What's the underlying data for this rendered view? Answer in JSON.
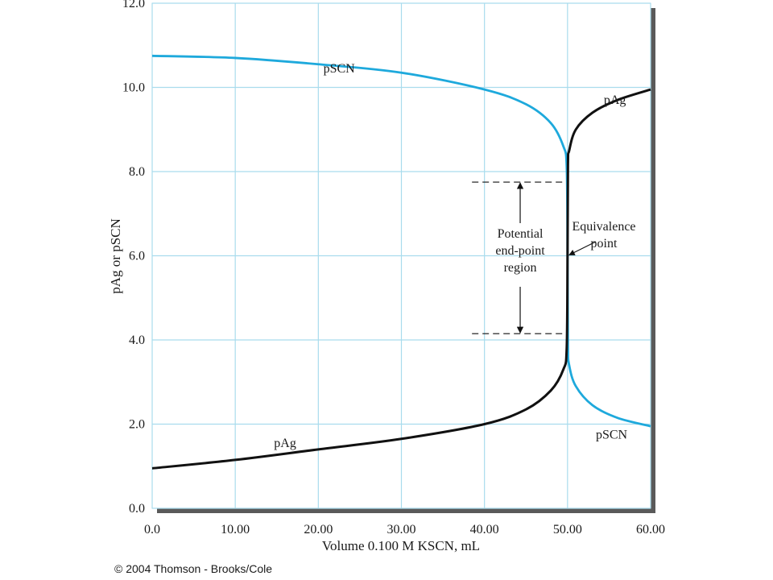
{
  "chart_data": {
    "type": "line",
    "title": "",
    "xlabel": "Volume 0.100 M KSCN, mL",
    "ylabel": "pAg or pSCN",
    "xlim": [
      0,
      60
    ],
    "ylim": [
      0,
      12
    ],
    "x_ticks": [
      "0.0",
      "10.00",
      "20.00",
      "30.00",
      "40.00",
      "50.00",
      "60.00"
    ],
    "y_ticks": [
      "0.0",
      "2.0",
      "4.0",
      "6.0",
      "8.0",
      "10.0",
      "12.0"
    ],
    "grid": true,
    "series": [
      {
        "name": "pSCN",
        "color": "#1ea9dc",
        "x": [
          0,
          10,
          20,
          30,
          40,
          45,
          48,
          49.5,
          49.9,
          50.0,
          50.05,
          50.2,
          51,
          53,
          56,
          60
        ],
        "y": [
          10.75,
          10.7,
          10.55,
          10.35,
          9.95,
          9.6,
          9.15,
          8.6,
          8.1,
          6.0,
          3.9,
          3.4,
          2.9,
          2.45,
          2.15,
          1.95
        ]
      },
      {
        "name": "pAg",
        "color": "#111111",
        "x": [
          0,
          10,
          20,
          30,
          40,
          45,
          48,
          49.5,
          49.9,
          50.0,
          50.05,
          50.2,
          51,
          53,
          56,
          60
        ],
        "y": [
          0.95,
          1.15,
          1.4,
          1.65,
          2.0,
          2.35,
          2.8,
          3.3,
          3.8,
          6.0,
          8.15,
          8.5,
          9.0,
          9.4,
          9.7,
          9.95
        ]
      }
    ],
    "labels": [
      {
        "text": "pSCN",
        "series": "pSCN",
        "x": 22.5,
        "y": 10.45
      },
      {
        "text": "pAg",
        "series": "pAg",
        "x": 55.7,
        "y": 9.7
      },
      {
        "text": "pAg",
        "series": "pAg",
        "x": 16,
        "y": 1.55
      },
      {
        "text": "pSCN",
        "series": "pSCN",
        "x": 55.3,
        "y": 1.75
      }
    ],
    "annotations": {
      "end_point_region": {
        "upper": 7.75,
        "lower": 4.15,
        "x_from": 38.5,
        "x_to": 50.0,
        "arrow_x": 44.3,
        "text_lines": [
          "Potential",
          "end-point",
          "region"
        ]
      },
      "equivalence_point": {
        "x": 50.0,
        "y": 6.0,
        "text_lines": [
          "Equivalence",
          "point"
        ]
      }
    }
  },
  "footer": {
    "copyright": "© 2004 Thomson - Brooks/Cole"
  }
}
